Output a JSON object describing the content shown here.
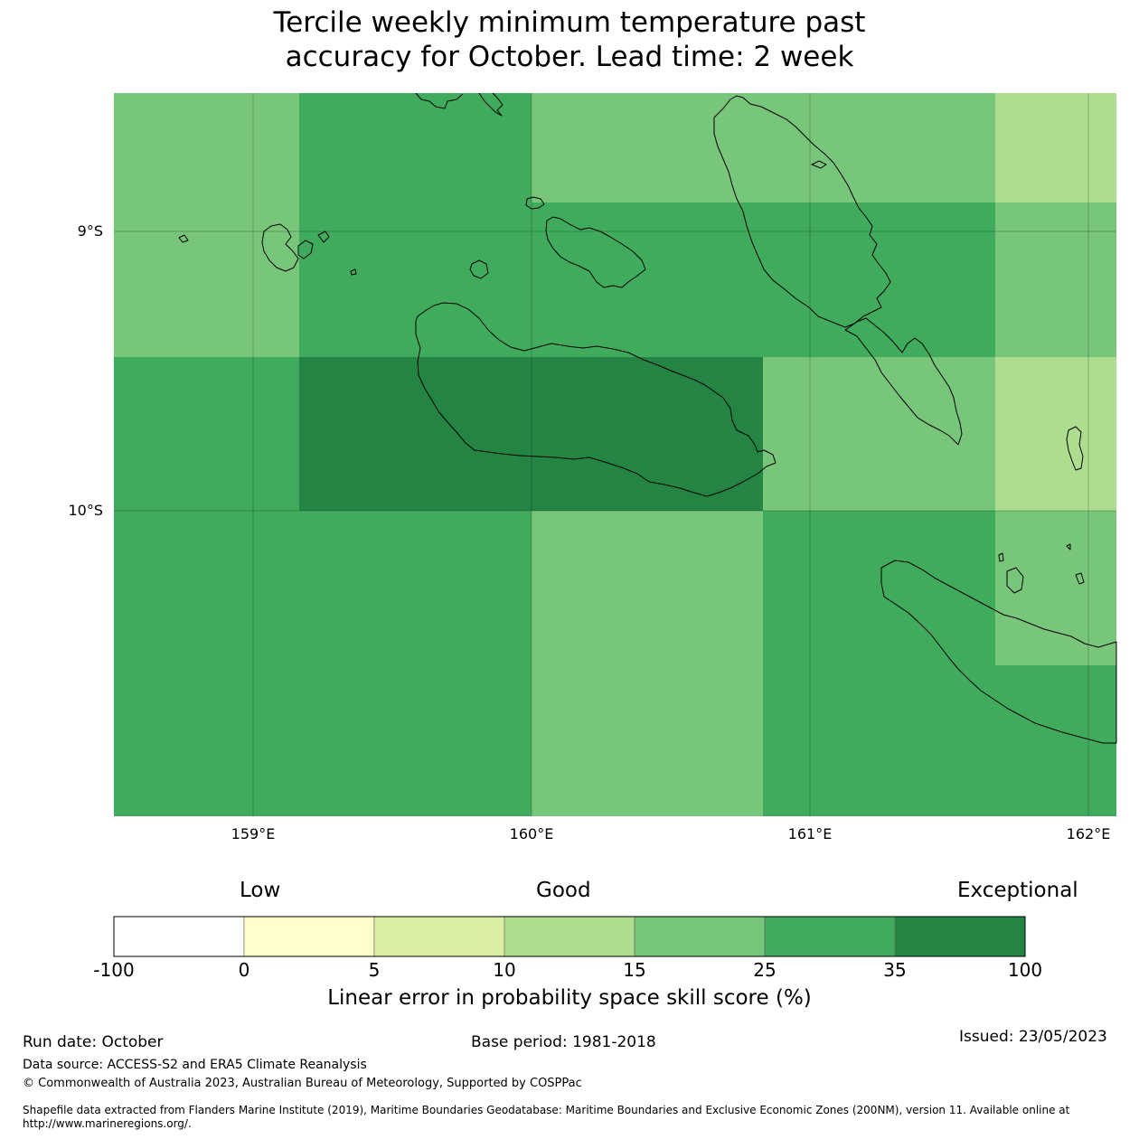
{
  "title": {
    "line1": "Tercile weekly minimum temperature past",
    "line2": "accuracy for October. Lead time: 2 week"
  },
  "map": {
    "lat_labels": [
      "9°S",
      "10°S"
    ],
    "lon_labels": [
      "159°E",
      "160°E",
      "161°E",
      "162°E"
    ]
  },
  "legend": {
    "qualitative": [
      "Low",
      "Good",
      "Exceptional"
    ],
    "ticks": [
      "-100",
      "0",
      "5",
      "10",
      "15",
      "25",
      "35",
      "100"
    ],
    "colors": [
      "#ffffff",
      "#ffffcc",
      "#d9f0a3",
      "#addd8e",
      "#78c679",
      "#41ab5d",
      "#238443"
    ],
    "label": "Linear error in probability space skill score (%)"
  },
  "footer": {
    "run_date": "Run date: October",
    "base_period": "Base period: 1981-2018",
    "issued": "Issued: 23/05/2023",
    "data_source": "Data source: ACCESS-S2 and ERA5 Climate Reanalysis",
    "copyright": "© Commonwealth of Australia 2023, Australian Bureau of Meteorology, Supported by COSPPac",
    "shapefile_line1": "Shapefile data extracted from Flanders Marine Institute (2019), Maritime Boundaries Geodatabase: Maritime Boundaries and Exclusive Economic Zones (200NM), version 11. Available online at",
    "shapefile_line2": "http://www.marineregions.org/."
  },
  "colors": {
    "c15_25": "#78c679",
    "c25_35": "#41ab5d",
    "c35_100": "#238443",
    "c10_15": "#addd8e"
  }
}
